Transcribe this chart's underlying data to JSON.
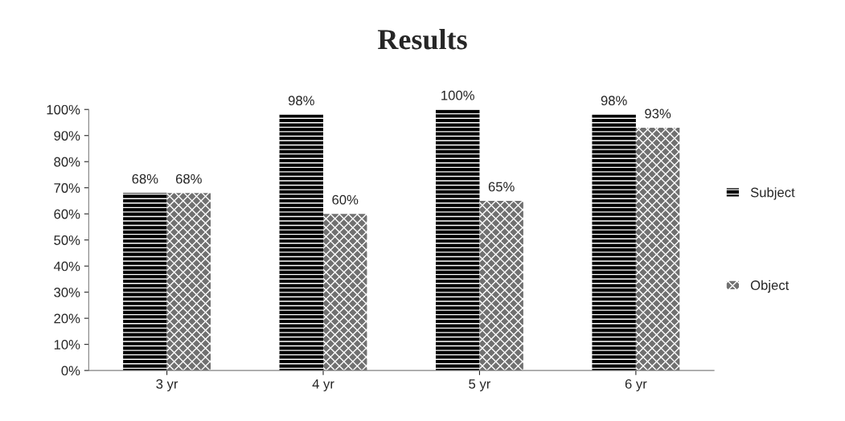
{
  "chart_data": {
    "type": "bar",
    "title": "Results",
    "categories": [
      "3 yr",
      "4 yr",
      "5 yr",
      "6 yr"
    ],
    "series": [
      {
        "name": "Subject",
        "color": "#000000",
        "values": [
          68,
          98,
          100,
          98
        ],
        "value_labels": [
          "68%",
          "98%",
          "100%",
          "98%"
        ]
      },
      {
        "name": "Object",
        "color": "#707070",
        "values": [
          68,
          60,
          65,
          93
        ],
        "value_labels": [
          "68%",
          "60%",
          "65%",
          "93%"
        ]
      }
    ],
    "ylim": [
      0,
      100
    ],
    "yticks": [
      {
        "value": 0,
        "label": "0%"
      },
      {
        "value": 10,
        "label": "10%"
      },
      {
        "value": 20,
        "label": "20%"
      },
      {
        "value": 30,
        "label": "30%"
      },
      {
        "value": 40,
        "label": "40%"
      },
      {
        "value": 50,
        "label": "50%"
      },
      {
        "value": 60,
        "label": "60%"
      },
      {
        "value": 70,
        "label": "70%"
      },
      {
        "value": 80,
        "label": "80%"
      },
      {
        "value": 90,
        "label": "90%"
      },
      {
        "value": 100,
        "label": "100%"
      }
    ],
    "legend": "right",
    "grid": false
  }
}
